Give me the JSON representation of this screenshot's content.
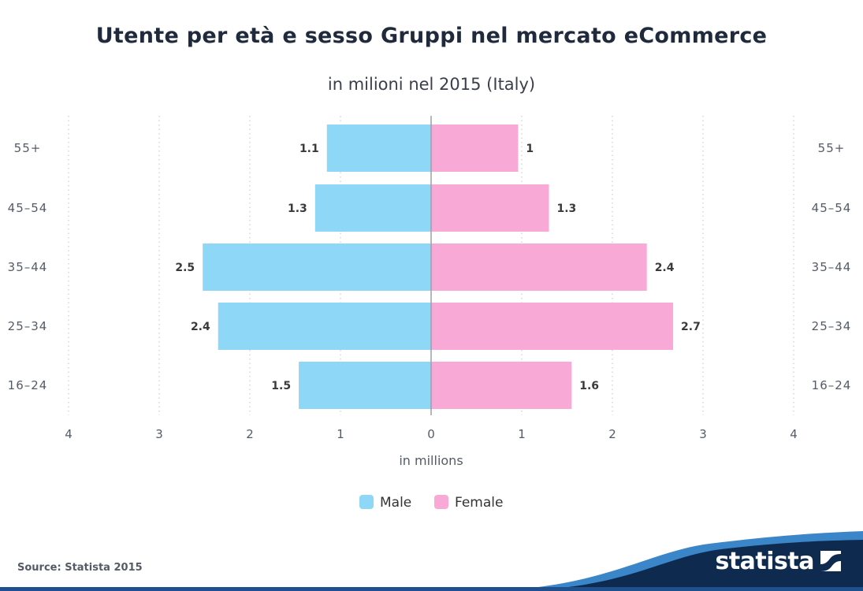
{
  "header": {
    "title": "Utente per età e sesso Gruppi nel mercato eCommerce",
    "subtitle": "in milioni nel 2015 (Italy)"
  },
  "footer": {
    "source": "Source: Statista 2015",
    "brand": "statista"
  },
  "colors": {
    "male": "#8fd7f7",
    "female": "#f9a9d6",
    "footer_dark": "#0f2a4f",
    "footer_accent": "#3a86c8"
  },
  "chart_data": {
    "type": "bar",
    "orientation": "horizontal",
    "categories": [
      "55+",
      "45-54",
      "35-44",
      "25-34",
      "16-24"
    ],
    "category_labels": [
      "55+",
      "45–54",
      "35–44",
      "25–34",
      "16–24"
    ],
    "series": [
      {
        "name": "Male",
        "values": [
          1.15,
          1.28,
          2.52,
          2.35,
          1.46
        ],
        "labels": [
          "1.1",
          "1.3",
          "2.5",
          "2.4",
          "1.5"
        ],
        "direction": "left"
      },
      {
        "name": "Female",
        "values": [
          0.96,
          1.3,
          2.38,
          2.67,
          1.55
        ],
        "labels": [
          "1",
          "1.3",
          "2.4",
          "2.7",
          "1.6"
        ],
        "direction": "right"
      }
    ],
    "xlabel": "in millions",
    "xlim": [
      -4,
      4
    ],
    "tick_values": [
      -4,
      -3,
      -2,
      -1,
      0,
      1,
      2,
      3,
      4
    ],
    "tick_labels": [
      "4",
      "3",
      "2",
      "1",
      "0",
      "1",
      "2",
      "3",
      "4"
    ],
    "grid": true,
    "legend_position": "bottom"
  }
}
